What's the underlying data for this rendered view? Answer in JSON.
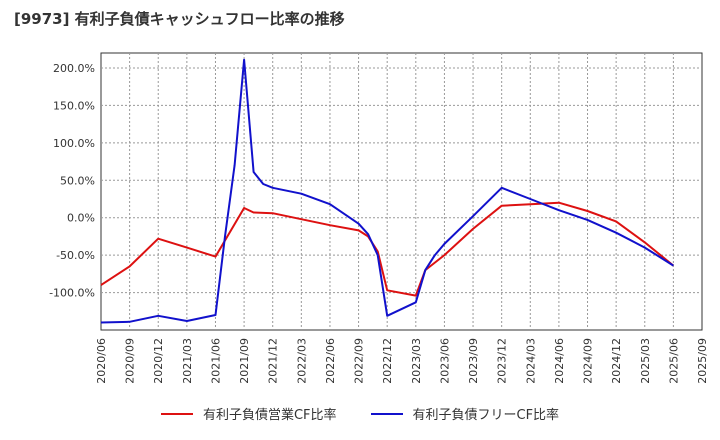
{
  "chart_data": {
    "type": "line",
    "title": "[9973]  有利子負債キャッシュフロー比率の推移",
    "xlabel": "",
    "ylabel": "",
    "ylim": [
      -150,
      220
    ],
    "y_ticks": [
      {
        "value": 200,
        "label": "200.0%"
      },
      {
        "value": 150,
        "label": "150.0%"
      },
      {
        "value": 100,
        "label": "100.0%"
      },
      {
        "value": 50,
        "label": "50.0%"
      },
      {
        "value": 0,
        "label": "0.0%"
      },
      {
        "value": -50,
        "label": "-50.0%"
      },
      {
        "value": -100,
        "label": "-100.0%"
      }
    ],
    "x_ticks": [
      "2020/06",
      "2020/09",
      "2020/12",
      "2021/03",
      "2021/06",
      "2021/09",
      "2021/12",
      "2022/03",
      "2022/06",
      "2022/09",
      "2022/12",
      "2023/03",
      "2023/06",
      "2023/09",
      "2023/12",
      "2024/03",
      "2024/06",
      "2024/09",
      "2024/12",
      "2025/03",
      "2025/06",
      "2025/09"
    ],
    "x_range": [
      0,
      63
    ],
    "grid": true,
    "legend_position": "bottom",
    "series": [
      {
        "name": "有利子負債営業CF比率",
        "color": "#dd1111",
        "points": [
          [
            0,
            -90
          ],
          [
            3,
            -65
          ],
          [
            6,
            -28
          ],
          [
            9,
            -40
          ],
          [
            12,
            -52
          ],
          [
            15,
            13
          ],
          [
            16,
            7
          ],
          [
            18,
            6
          ],
          [
            21,
            -2
          ],
          [
            24,
            -10
          ],
          [
            27,
            -17
          ],
          [
            28,
            -25
          ],
          [
            29,
            -45
          ],
          [
            30,
            -97
          ],
          [
            33,
            -104
          ],
          [
            34,
            -70
          ],
          [
            36,
            -50
          ],
          [
            39,
            -15
          ],
          [
            42,
            16
          ],
          [
            45,
            18
          ],
          [
            48,
            20
          ],
          [
            51,
            9
          ],
          [
            54,
            -5
          ],
          [
            57,
            -33
          ],
          [
            60,
            -64
          ]
        ]
      },
      {
        "name": "有利子負債フリーCF比率",
        "color": "#1111cc",
        "points": [
          [
            0,
            -140
          ],
          [
            3,
            -139
          ],
          [
            6,
            -131
          ],
          [
            9,
            -138
          ],
          [
            12,
            -130
          ],
          [
            13,
            -25
          ],
          [
            14,
            70
          ],
          [
            15,
            211
          ],
          [
            16,
            61
          ],
          [
            17,
            45
          ],
          [
            18,
            40
          ],
          [
            21,
            32
          ],
          [
            24,
            18
          ],
          [
            27,
            -8
          ],
          [
            28,
            -22
          ],
          [
            29,
            -50
          ],
          [
            30,
            -131
          ],
          [
            33,
            -113
          ],
          [
            34,
            -70
          ],
          [
            35,
            -50
          ],
          [
            36,
            -35
          ],
          [
            39,
            2
          ],
          [
            42,
            40
          ],
          [
            45,
            25
          ],
          [
            48,
            10
          ],
          [
            51,
            -3
          ],
          [
            54,
            -20
          ],
          [
            57,
            -40
          ],
          [
            60,
            -64
          ]
        ]
      }
    ]
  }
}
